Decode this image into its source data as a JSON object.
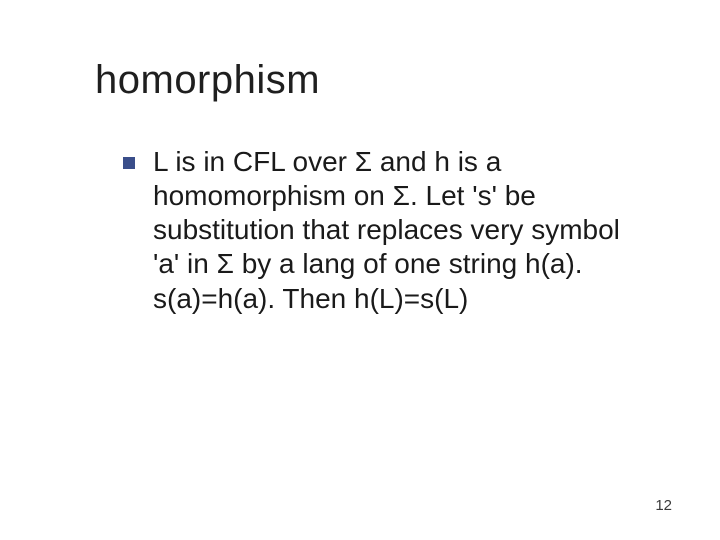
{
  "title": "homorphism",
  "bullet_color": "#3a4e8a",
  "body": "L is in CFL over Σ and h is a homomorphism on Σ. Let 's' be substitution that replaces very symbol 'a' in Σ by a lang of one string h(a). s(a)=h(a). Then h(L)=s(L)",
  "body_fontsize": 28,
  "title_fontsize": 40,
  "page_number": "12",
  "background_color": "#ffffff"
}
